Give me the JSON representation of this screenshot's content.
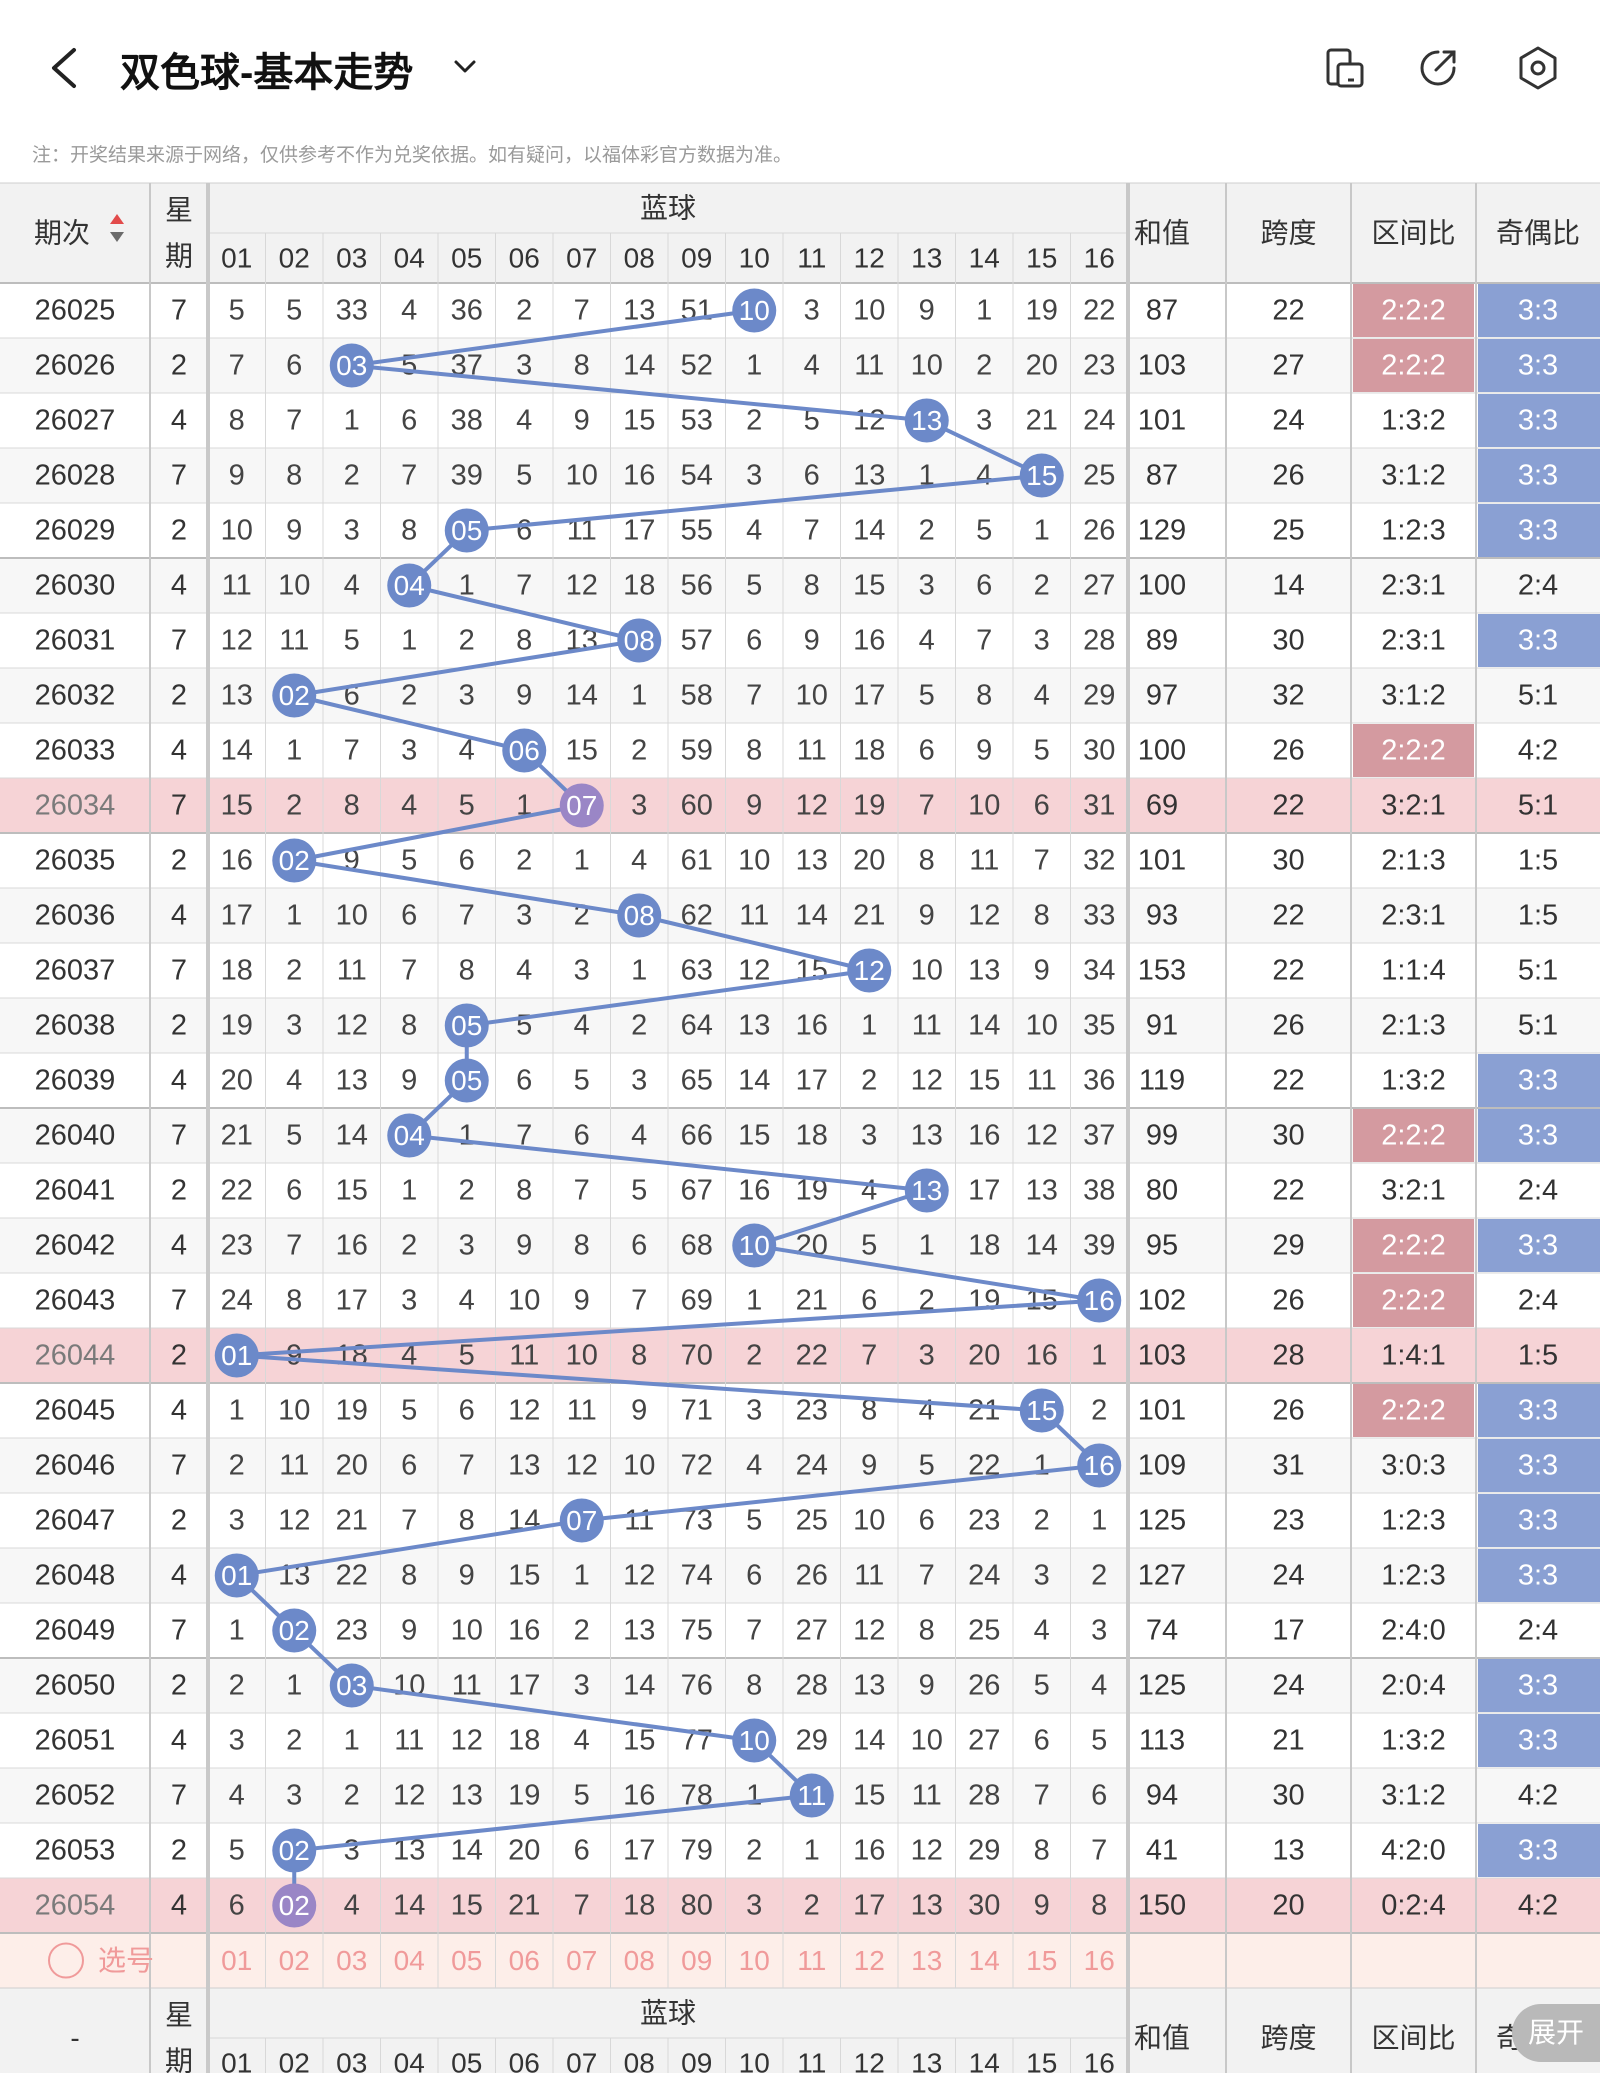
{
  "header": {
    "back_icon": "chevron-left-icon",
    "title": "双色球-基本走势",
    "dropdown_icon": "chevron-down-icon",
    "icons": [
      "phone-landscape-icon",
      "share-icon",
      "settings-hexagon-icon"
    ]
  },
  "notice": "注：开奖结果来源于网络，仅供参考不作为兑奖依据。如有疑问，以福体彩官方数据为准。",
  "table": {
    "col_headers": {
      "period": "期次",
      "weekday": "星期",
      "blue": "蓝球",
      "sum": "和值",
      "span": "跨度",
      "zone_ratio": "区间比",
      "odd_even_ratio": "奇偶比"
    },
    "blue_numbers": [
      "01",
      "02",
      "03",
      "04",
      "05",
      "06",
      "07",
      "08",
      "09",
      "10",
      "11",
      "12",
      "13",
      "14",
      "15",
      "16"
    ],
    "rows": [
      {
        "period": "26025",
        "weekday": "7",
        "blue": 10,
        "cells": [
          "5",
          "5",
          "33",
          "4",
          "36",
          "2",
          "7",
          "13",
          "51",
          "10",
          "3",
          "10",
          "9",
          "1",
          "19",
          "22"
        ],
        "sum": "87",
        "span": "22",
        "zone": "2:2:2",
        "oddeven": "3:3"
      },
      {
        "period": "26026",
        "weekday": "2",
        "blue": 3,
        "cells": [
          "7",
          "6",
          "03",
          "5",
          "37",
          "3",
          "8",
          "14",
          "52",
          "1",
          "4",
          "11",
          "10",
          "2",
          "20",
          "23"
        ],
        "sum": "103",
        "span": "27",
        "zone": "2:2:2",
        "oddeven": "3:3"
      },
      {
        "period": "26027",
        "weekday": "4",
        "blue": 13,
        "cells": [
          "8",
          "7",
          "1",
          "6",
          "38",
          "4",
          "9",
          "15",
          "53",
          "2",
          "5",
          "12",
          "13",
          "3",
          "21",
          "24"
        ],
        "sum": "101",
        "span": "24",
        "zone": "1:3:2",
        "oddeven": "3:3"
      },
      {
        "period": "26028",
        "weekday": "7",
        "blue": 15,
        "cells": [
          "9",
          "8",
          "2",
          "7",
          "39",
          "5",
          "10",
          "16",
          "54",
          "3",
          "6",
          "13",
          "1",
          "4",
          "15",
          "25"
        ],
        "sum": "87",
        "span": "26",
        "zone": "3:1:2",
        "oddeven": "3:3"
      },
      {
        "period": "26029",
        "weekday": "2",
        "blue": 5,
        "cells": [
          "10",
          "9",
          "3",
          "8",
          "05",
          "6",
          "11",
          "17",
          "55",
          "4",
          "7",
          "14",
          "2",
          "5",
          "1",
          "26"
        ],
        "sum": "129",
        "span": "25",
        "zone": "1:2:3",
        "oddeven": "3:3"
      },
      {
        "period": "26030",
        "weekday": "4",
        "blue": 4,
        "cells": [
          "11",
          "10",
          "4",
          "04",
          "1",
          "7",
          "12",
          "18",
          "56",
          "5",
          "8",
          "15",
          "3",
          "6",
          "2",
          "27"
        ],
        "sum": "100",
        "span": "14",
        "zone": "2:3:1",
        "oddeven": "2:4"
      },
      {
        "period": "26031",
        "weekday": "7",
        "blue": 8,
        "cells": [
          "12",
          "11",
          "5",
          "1",
          "2",
          "8",
          "13",
          "08",
          "57",
          "6",
          "9",
          "16",
          "4",
          "7",
          "3",
          "28"
        ],
        "sum": "89",
        "span": "30",
        "zone": "2:3:1",
        "oddeven": "3:3"
      },
      {
        "period": "26032",
        "weekday": "2",
        "blue": 2,
        "cells": [
          "13",
          "02",
          "6",
          "2",
          "3",
          "9",
          "14",
          "1",
          "58",
          "7",
          "10",
          "17",
          "5",
          "8",
          "4",
          "29"
        ],
        "sum": "97",
        "span": "32",
        "zone": "3:1:2",
        "oddeven": "5:1"
      },
      {
        "period": "26033",
        "weekday": "4",
        "blue": 6,
        "cells": [
          "14",
          "1",
          "7",
          "3",
          "4",
          "06",
          "15",
          "2",
          "59",
          "8",
          "11",
          "18",
          "6",
          "9",
          "5",
          "30"
        ],
        "sum": "100",
        "span": "26",
        "zone": "2:2:2",
        "oddeven": "4:2"
      },
      {
        "period": "26034",
        "weekday": "7",
        "blue": 7,
        "cells": [
          "15",
          "2",
          "8",
          "4",
          "5",
          "1",
          "07",
          "3",
          "60",
          "9",
          "12",
          "19",
          "7",
          "10",
          "6",
          "31"
        ],
        "sum": "69",
        "span": "22",
        "zone": "3:2:1",
        "oddeven": "5:1"
      },
      {
        "period": "26035",
        "weekday": "2",
        "blue": 2,
        "cells": [
          "16",
          "02",
          "9",
          "5",
          "6",
          "2",
          "1",
          "4",
          "61",
          "10",
          "13",
          "20",
          "8",
          "11",
          "7",
          "32"
        ],
        "sum": "101",
        "span": "30",
        "zone": "2:1:3",
        "oddeven": "1:5"
      },
      {
        "period": "26036",
        "weekday": "4",
        "blue": 8,
        "cells": [
          "17",
          "1",
          "10",
          "6",
          "7",
          "3",
          "2",
          "08",
          "62",
          "11",
          "14",
          "21",
          "9",
          "12",
          "8",
          "33"
        ],
        "sum": "93",
        "span": "22",
        "zone": "2:3:1",
        "oddeven": "1:5"
      },
      {
        "period": "26037",
        "weekday": "7",
        "blue": 12,
        "cells": [
          "18",
          "2",
          "11",
          "7",
          "8",
          "4",
          "3",
          "1",
          "63",
          "12",
          "15",
          "12",
          "10",
          "13",
          "9",
          "34"
        ],
        "sum": "153",
        "span": "22",
        "zone": "1:1:4",
        "oddeven": "5:1"
      },
      {
        "period": "26038",
        "weekday": "2",
        "blue": 5,
        "cells": [
          "19",
          "3",
          "12",
          "8",
          "05",
          "5",
          "4",
          "2",
          "64",
          "13",
          "16",
          "1",
          "11",
          "14",
          "10",
          "35"
        ],
        "sum": "91",
        "span": "26",
        "zone": "2:1:3",
        "oddeven": "5:1"
      },
      {
        "period": "26039",
        "weekday": "4",
        "blue": 5,
        "cells": [
          "20",
          "4",
          "13",
          "9",
          "05",
          "6",
          "5",
          "3",
          "65",
          "14",
          "17",
          "2",
          "12",
          "15",
          "11",
          "36"
        ],
        "sum": "119",
        "span": "22",
        "zone": "1:3:2",
        "oddeven": "3:3"
      },
      {
        "period": "26040",
        "weekday": "7",
        "blue": 4,
        "cells": [
          "21",
          "5",
          "14",
          "04",
          "1",
          "7",
          "6",
          "4",
          "66",
          "15",
          "18",
          "3",
          "13",
          "16",
          "12",
          "37"
        ],
        "sum": "99",
        "span": "30",
        "zone": "2:2:2",
        "oddeven": "3:3"
      },
      {
        "period": "26041",
        "weekday": "2",
        "blue": 13,
        "cells": [
          "22",
          "6",
          "15",
          "1",
          "2",
          "8",
          "7",
          "5",
          "67",
          "16",
          "19",
          "4",
          "13",
          "17",
          "13",
          "38"
        ],
        "sum": "80",
        "span": "22",
        "zone": "3:2:1",
        "oddeven": "2:4"
      },
      {
        "period": "26042",
        "weekday": "4",
        "blue": 10,
        "cells": [
          "23",
          "7",
          "16",
          "2",
          "3",
          "9",
          "8",
          "6",
          "68",
          "10",
          "20",
          "5",
          "1",
          "18",
          "14",
          "39"
        ],
        "sum": "95",
        "span": "29",
        "zone": "2:2:2",
        "oddeven": "3:3"
      },
      {
        "period": "26043",
        "weekday": "7",
        "blue": 16,
        "cells": [
          "24",
          "8",
          "17",
          "3",
          "4",
          "10",
          "9",
          "7",
          "69",
          "1",
          "21",
          "6",
          "2",
          "19",
          "15",
          "16"
        ],
        "sum": "102",
        "span": "26",
        "zone": "2:2:2",
        "oddeven": "2:4"
      },
      {
        "period": "26044",
        "weekday": "2",
        "blue": 1,
        "cells": [
          "01",
          "9",
          "18",
          "4",
          "5",
          "11",
          "10",
          "8",
          "70",
          "2",
          "22",
          "7",
          "3",
          "20",
          "16",
          "1"
        ],
        "sum": "103",
        "span": "28",
        "zone": "1:4:1",
        "oddeven": "1:5"
      },
      {
        "period": "26045",
        "weekday": "4",
        "blue": 15,
        "cells": [
          "1",
          "10",
          "19",
          "5",
          "6",
          "12",
          "11",
          "9",
          "71",
          "3",
          "23",
          "8",
          "4",
          "21",
          "15",
          "2"
        ],
        "sum": "101",
        "span": "26",
        "zone": "2:2:2",
        "oddeven": "3:3"
      },
      {
        "period": "26046",
        "weekday": "7",
        "blue": 16,
        "cells": [
          "2",
          "11",
          "20",
          "6",
          "7",
          "13",
          "12",
          "10",
          "72",
          "4",
          "24",
          "9",
          "5",
          "22",
          "1",
          "16"
        ],
        "sum": "109",
        "span": "31",
        "zone": "3:0:3",
        "oddeven": "3:3"
      },
      {
        "period": "26047",
        "weekday": "2",
        "blue": 7,
        "cells": [
          "3",
          "12",
          "21",
          "7",
          "8",
          "14",
          "07",
          "11",
          "73",
          "5",
          "25",
          "10",
          "6",
          "23",
          "2",
          "1"
        ],
        "sum": "125",
        "span": "23",
        "zone": "1:2:3",
        "oddeven": "3:3"
      },
      {
        "period": "26048",
        "weekday": "4",
        "blue": 1,
        "cells": [
          "01",
          "13",
          "22",
          "8",
          "9",
          "15",
          "1",
          "12",
          "74",
          "6",
          "26",
          "11",
          "7",
          "24",
          "3",
          "2"
        ],
        "sum": "127",
        "span": "24",
        "zone": "1:2:3",
        "oddeven": "3:3"
      },
      {
        "period": "26049",
        "weekday": "7",
        "blue": 2,
        "cells": [
          "1",
          "02",
          "23",
          "9",
          "10",
          "16",
          "2",
          "13",
          "75",
          "7",
          "27",
          "12",
          "8",
          "25",
          "4",
          "3"
        ],
        "sum": "74",
        "span": "17",
        "zone": "2:4:0",
        "oddeven": "2:4"
      },
      {
        "period": "26050",
        "weekday": "2",
        "blue": 3,
        "cells": [
          "2",
          "1",
          "03",
          "10",
          "11",
          "17",
          "3",
          "14",
          "76",
          "8",
          "28",
          "13",
          "9",
          "26",
          "5",
          "4"
        ],
        "sum": "125",
        "span": "24",
        "zone": "2:0:4",
        "oddeven": "3:3"
      },
      {
        "period": "26051",
        "weekday": "4",
        "blue": 10,
        "cells": [
          "3",
          "2",
          "1",
          "11",
          "12",
          "18",
          "4",
          "15",
          "77",
          "10",
          "29",
          "14",
          "10",
          "27",
          "6",
          "5"
        ],
        "sum": "113",
        "span": "21",
        "zone": "1:3:2",
        "oddeven": "3:3"
      },
      {
        "period": "26052",
        "weekday": "7",
        "blue": 11,
        "cells": [
          "4",
          "3",
          "2",
          "12",
          "13",
          "19",
          "5",
          "16",
          "78",
          "1",
          "11",
          "15",
          "11",
          "28",
          "7",
          "6"
        ],
        "sum": "94",
        "span": "30",
        "zone": "3:1:2",
        "oddeven": "4:2"
      },
      {
        "period": "26053",
        "weekday": "2",
        "blue": 2,
        "cells": [
          "5",
          "02",
          "3",
          "13",
          "14",
          "20",
          "6",
          "17",
          "79",
          "2",
          "1",
          "16",
          "12",
          "29",
          "8",
          "7"
        ],
        "sum": "41",
        "span": "13",
        "zone": "4:2:0",
        "oddeven": "3:3"
      },
      {
        "period": "26054",
        "weekday": "4",
        "blue": 2,
        "cells": [
          "6",
          "02",
          "4",
          "14",
          "15",
          "21",
          "7",
          "18",
          "80",
          "3",
          "2",
          "17",
          "13",
          "30",
          "9",
          "8"
        ],
        "sum": "150",
        "span": "20",
        "zone": "0:2:4",
        "oddeven": "4:2"
      }
    ],
    "select_row": {
      "label": "选号",
      "radio_icon": "radio-circle-icon"
    },
    "footer_period": "-",
    "colors": {
      "ball": "#6c89c9",
      "ball_last": "#9a86c6",
      "line": "#6c89c9",
      "zone_highlight": "#d49aa0",
      "oddeven_highlight": "#8aa0d3",
      "highlight_row": "#f6d3d6",
      "header_bg": "#f2f2f2",
      "select_row_bg": "#fdeee9",
      "select_text": "#f09a9a"
    }
  },
  "expand_button": "展开"
}
